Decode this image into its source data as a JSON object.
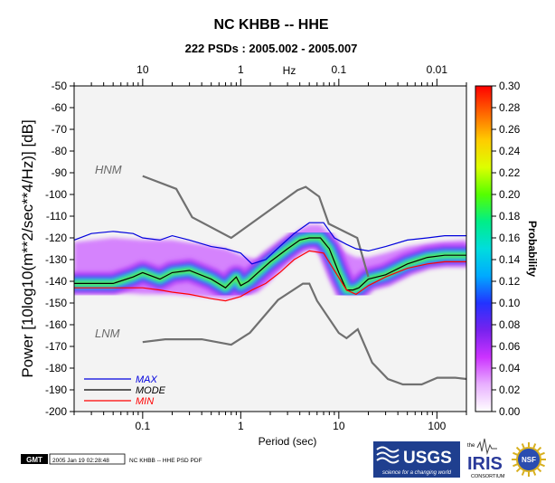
{
  "chart_data": {
    "type": "heatmap",
    "title": "NC KHBB -- HHE",
    "subtitle": "222 PSDs : 2005.002 - 2005.007",
    "xlabel": "Period (sec)",
    "ylabel": "Power [10log10(m**2/sec**4/Hz)] [dB]",
    "top_axis_label": "Hz",
    "x_scale": "log",
    "xlim": [
      0.02,
      200
    ],
    "ylim": [
      -200,
      -50
    ],
    "x_ticks": [
      {
        "label": "0.1",
        "value": 0.1
      },
      {
        "label": "1",
        "value": 1
      },
      {
        "label": "10",
        "value": 10
      },
      {
        "label": "100",
        "value": 100
      }
    ],
    "top_ticks": [
      {
        "label": "10",
        "value": 0.1
      },
      {
        "label": "1",
        "value": 1
      },
      {
        "label": "0.1",
        "value": 10
      },
      {
        "label": "0.01",
        "value": 100
      }
    ],
    "y_ticks": [
      "-50",
      "-60",
      "-70",
      "-80",
      "-90",
      "-100",
      "-110",
      "-120",
      "-130",
      "-140",
      "-150",
      "-160",
      "-170",
      "-180",
      "-190",
      "-200"
    ],
    "colorbar": {
      "label": "Probability",
      "min": 0,
      "max": 0.3,
      "ticks": [
        "0.00",
        "0.02",
        "0.04",
        "0.06",
        "0.08",
        "0.10",
        "0.12",
        "0.14",
        "0.16",
        "0.18",
        "0.20",
        "0.22",
        "0.24",
        "0.26",
        "0.28",
        "0.30"
      ],
      "colors": [
        "#ffffff",
        "#e8b0ff",
        "#cc33ff",
        "#7722ee",
        "#2233ff",
        "#00aaff",
        "#00dddd",
        "#00ee88",
        "#55ff00",
        "#ddff00",
        "#ffcc00",
        "#ff6600",
        "#ff0000"
      ]
    },
    "series": [
      {
        "name": "MAX",
        "color": "#0000dd",
        "x": [
          0.02,
          0.03,
          0.05,
          0.08,
          0.1,
          0.15,
          0.2,
          0.3,
          0.5,
          0.7,
          1.0,
          1.3,
          1.8,
          2.5,
          3.5,
          5.0,
          7.0,
          9.0,
          12,
          15,
          20,
          30,
          50,
          80,
          120,
          200
        ],
        "y": [
          -121,
          -118,
          -117,
          -118,
          -120,
          -121,
          -119,
          -121,
          -124,
          -125,
          -127,
          -132,
          -130,
          -124,
          -118,
          -113,
          -113,
          -120,
          -123,
          -125,
          -126,
          -124,
          -121,
          -120,
          -119,
          -119
        ]
      },
      {
        "name": "MODE",
        "color": "#000000",
        "x": [
          0.02,
          0.03,
          0.05,
          0.08,
          0.1,
          0.15,
          0.2,
          0.3,
          0.5,
          0.7,
          0.9,
          1.0,
          1.2,
          1.5,
          2.0,
          3.0,
          4.0,
          5.0,
          6.5,
          8.0,
          10,
          12,
          14,
          16,
          20,
          30,
          50,
          80,
          120,
          200
        ],
        "y": [
          -141,
          -141,
          -141,
          -138,
          -136,
          -139,
          -136,
          -135,
          -139,
          -143,
          -138,
          -142,
          -140,
          -136,
          -131,
          -125,
          -121,
          -120,
          -120,
          -125,
          -136,
          -144,
          -144,
          -143,
          -139,
          -137,
          -132,
          -129,
          -128,
          -128
        ]
      },
      {
        "name": "MIN",
        "color": "#ff0000",
        "x": [
          0.02,
          0.03,
          0.05,
          0.08,
          0.1,
          0.15,
          0.2,
          0.3,
          0.5,
          0.7,
          1.0,
          1.3,
          1.8,
          2.5,
          3.5,
          5.0,
          7.0,
          9.0,
          12,
          15,
          20,
          30,
          50,
          80,
          120,
          200
        ],
        "y": [
          -143,
          -143,
          -143,
          -143,
          -143,
          -144,
          -145,
          -146,
          -148,
          -149,
          -147,
          -144,
          -141,
          -136,
          -130,
          -126,
          -127,
          -135,
          -144,
          -146,
          -142,
          -138,
          -134,
          -132,
          -131,
          -131
        ]
      }
    ],
    "reference_models": [
      {
        "name": "HNM",
        "color": "#707070",
        "x": [
          0.1,
          0.22,
          0.32,
          0.8,
          3.8,
          4.6,
          6.3,
          7.9,
          15.4,
          20
        ],
        "y": [
          -91.5,
          -97.4,
          -110.5,
          -120,
          -98,
          -96.5,
          -101,
          -113.5,
          -120,
          -138
        ]
      },
      {
        "name": "LNM",
        "color": "#707070",
        "x": [
          0.1,
          0.17,
          0.4,
          0.8,
          1.24,
          2.4,
          4.3,
          5.0,
          6.0,
          10,
          12,
          15.6,
          21.9,
          31.6,
          45,
          70,
          101,
          154,
          200
        ],
        "y": [
          -168,
          -166.7,
          -166.7,
          -169.2,
          -163.7,
          -148.6,
          -141.1,
          -141.1,
          -149,
          -163.8,
          -166.2,
          -162.1,
          -177.5,
          -185,
          -187.5,
          -187.5,
          -184.4,
          -184.4,
          -185
        ]
      }
    ],
    "density_band": {
      "x": [
        0.02,
        0.05,
        0.1,
        0.2,
        0.4,
        0.7,
        1.0,
        1.5,
        2.0,
        3.0,
        4.0,
        5.0,
        6.5,
        8.0,
        10,
        12,
        15,
        20,
        30,
        50,
        100,
        200
      ],
      "upper": [
        -122,
        -120,
        -121,
        -121,
        -123,
        -125,
        -128,
        -130,
        -127,
        -120,
        -116,
        -114,
        -114,
        -118,
        -124,
        -127,
        -129,
        -129,
        -127,
        -124,
        -122,
        -121
      ],
      "lower": [
        -144,
        -145,
        -146,
        -146,
        -147,
        -148,
        -147,
        -145,
        -140,
        -131,
        -126,
        -124,
        -125,
        -132,
        -142,
        -146,
        -146,
        -142,
        -138,
        -134,
        -132,
        -131
      ]
    },
    "legend": {
      "position": "bottom-left",
      "entries": [
        "MAX",
        "MODE",
        "MIN"
      ]
    },
    "grid": false
  },
  "footer": {
    "gmt_badge": "GMT",
    "timestamp": "2005 Jan 19 02:28:48",
    "caption": "NC KHBB -- HHE PSD PDF"
  },
  "logos": {
    "usgs": {
      "name": "USGS",
      "tagline": "science for a changing world"
    },
    "iris": {
      "pre": "the",
      "name": "IRIS",
      "sub": "CONSORTIUM"
    },
    "nsf": {
      "name": "NSF"
    }
  },
  "model_labels": {
    "hnm": "HNM",
    "lnm": "LNM"
  }
}
